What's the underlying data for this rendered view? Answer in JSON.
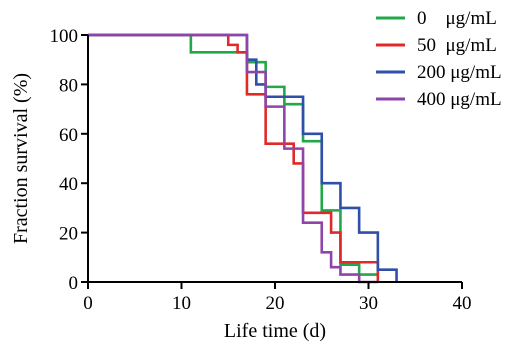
{
  "chart_data": {
    "type": "line",
    "subtype": "step (Kaplan-Meier survival)",
    "title": "",
    "xlabel": "Life time (d)",
    "ylabel": "Fraction survival (%)",
    "xlim": [
      0,
      40
    ],
    "ylim": [
      0,
      100
    ],
    "xticks": [
      0,
      10,
      20,
      30,
      40
    ],
    "yticks": [
      0,
      20,
      40,
      60,
      80,
      100
    ],
    "grid": false,
    "legend_position": "top-right",
    "series": [
      {
        "name": "0    μg/mL",
        "color": "#22a84a",
        "x": [
          0,
          11,
          17,
          19,
          21,
          23,
          25,
          27,
          29
        ],
        "y": [
          100,
          93,
          89,
          79,
          72,
          57,
          29,
          7,
          3
        ]
      },
      {
        "name": "50  μg/mL",
        "color": "#e02a2a",
        "x": [
          0,
          15,
          16,
          17,
          19,
          22,
          23,
          26,
          27,
          31
        ],
        "y": [
          100,
          96,
          93,
          76,
          56,
          48,
          28,
          20,
          8,
          0
        ]
      },
      {
        "name": "200 μg/mL",
        "color": "#2f4fa8",
        "x": [
          0,
          17,
          18,
          19,
          23,
          25,
          27,
          29,
          31,
          33
        ],
        "y": [
          100,
          90,
          80,
          75,
          60,
          40,
          30,
          20,
          5,
          0
        ]
      },
      {
        "name": "400 μg/mL",
        "color": "#8e44a8",
        "x": [
          0,
          17,
          19,
          21,
          23,
          25,
          26,
          27,
          29,
          31
        ],
        "y": [
          100,
          85,
          71,
          54,
          24,
          12,
          6,
          3,
          0,
          0
        ]
      }
    ]
  }
}
